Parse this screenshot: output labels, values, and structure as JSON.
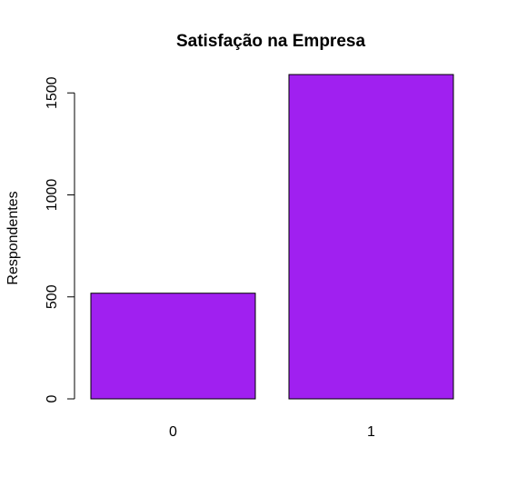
{
  "chart_data": {
    "type": "bar",
    "title": "Satisfação na Empresa",
    "xlabel": "",
    "ylabel": "Respondentes",
    "categories": [
      "0",
      "1"
    ],
    "values": [
      518,
      1590
    ],
    "yticks": [
      0,
      500,
      1000,
      1500
    ],
    "ylim": [
      0,
      1590
    ],
    "bar_color": "#A020F0",
    "grid": false,
    "legend": "none"
  }
}
